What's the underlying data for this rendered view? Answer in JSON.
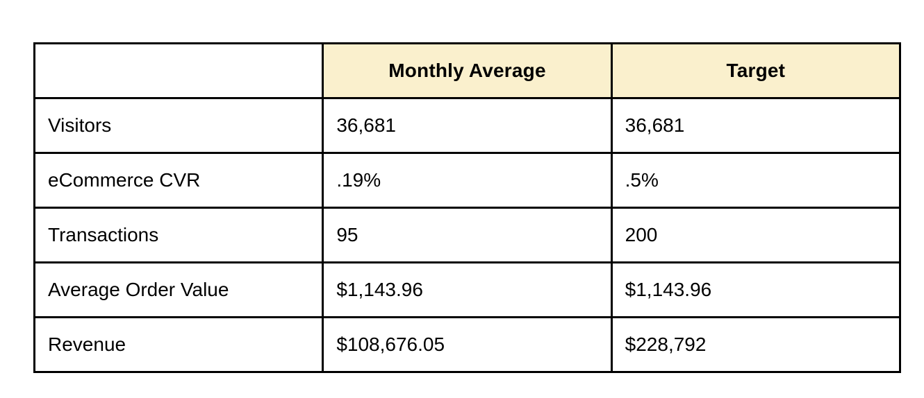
{
  "chart_data": {
    "type": "table",
    "columns": [
      "",
      "Monthly Average",
      "Target"
    ],
    "rows": [
      [
        "Visitors",
        "36,681",
        "36,681"
      ],
      [
        "eCommerce CVR",
        ".19%",
        ".5%"
      ],
      [
        "Transactions",
        "95",
        "200"
      ],
      [
        "Average Order Value",
        "$1,143.96",
        "$1,143.96"
      ],
      [
        "Revenue",
        "$108,676.05",
        "$228,792"
      ]
    ],
    "layout": {
      "header_row_highlighted": true,
      "first_column_is_labels": true,
      "grid": "all-borders"
    }
  },
  "colors": {
    "header_bg": "#faf0cd",
    "border": "#000000",
    "text": "#000000",
    "page_bg": "#ffffff"
  }
}
